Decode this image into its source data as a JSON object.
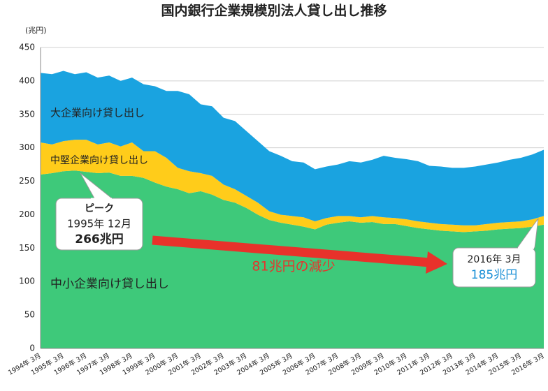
{
  "chart_data": {
    "type": "stacked-area",
    "title": "国内銀行企業規模別法人貸し出し推移",
    "y_unit": "(兆円)",
    "categories": [
      "1994年 3月",
      null,
      "1995年 3月",
      null,
      "1996年 3月",
      null,
      "1997年 3月",
      null,
      "1998年 3月",
      null,
      "1999年 3月",
      null,
      "2000年 3月",
      null,
      "2001年 3月",
      null,
      "2002年 3月",
      null,
      "2003年 3月",
      null,
      "2004年 3月",
      null,
      "2005年 3月",
      null,
      "2006年 3月",
      null,
      "2007年 3月",
      null,
      "2008年 3月",
      null,
      "2009年 3月",
      null,
      "2010年 3月",
      null,
      "2011年 3月",
      null,
      "2012年 3月",
      null,
      "2013年 3月",
      null,
      "2014年 3月",
      null,
      "2015年 3月",
      null,
      "2016年 3月"
    ],
    "series": [
      {
        "name": "中小企業向け貸し出し",
        "color": "#3ec97a",
        "values": [
          260,
          262,
          265,
          266,
          264,
          262,
          263,
          258,
          258,
          255,
          248,
          242,
          238,
          232,
          235,
          230,
          222,
          218,
          210,
          200,
          192,
          188,
          185,
          182,
          178,
          185,
          188,
          190,
          188,
          189,
          186,
          186,
          183,
          180,
          178,
          176,
          175,
          174,
          175,
          176,
          178,
          179,
          180,
          182,
          185
        ]
      },
      {
        "name": "中堅企業向け貸し出し",
        "color": "#ffcc1a",
        "values": [
          48,
          43,
          45,
          46,
          48,
          43,
          45,
          44,
          50,
          40,
          47,
          43,
          32,
          33,
          27,
          28,
          23,
          20,
          18,
          18,
          13,
          12,
          13,
          14,
          12,
          10,
          10,
          8,
          8,
          9,
          10,
          9,
          10,
          10,
          10,
          10,
          10,
          10,
          9,
          10,
          10,
          10,
          10,
          11,
          13
        ]
      },
      {
        "name": "大企業向け貸し出し",
        "color": "#1aa3e0",
        "values": [
          104,
          105,
          105,
          98,
          101,
          100,
          100,
          98,
          97,
          100,
          97,
          100,
          115,
          115,
          103,
          104,
          100,
          102,
          97,
          92,
          90,
          88,
          82,
          82,
          78,
          77,
          77,
          82,
          82,
          84,
          92,
          90,
          90,
          90,
          85,
          86,
          85,
          86,
          88,
          89,
          90,
          93,
          95,
          97,
          99
        ]
      }
    ],
    "ylim": [
      0,
      450
    ],
    "yticks": [
      0,
      50,
      100,
      150,
      200,
      250,
      300,
      350,
      400,
      450
    ],
    "grid": true,
    "annotations": {
      "peak_title": "ピーク",
      "peak_date": "1995年 12月",
      "peak_value": "266兆円",
      "decrease": "81兆円の減少",
      "end_date": "2016年 3月",
      "end_value": "185兆円"
    }
  }
}
